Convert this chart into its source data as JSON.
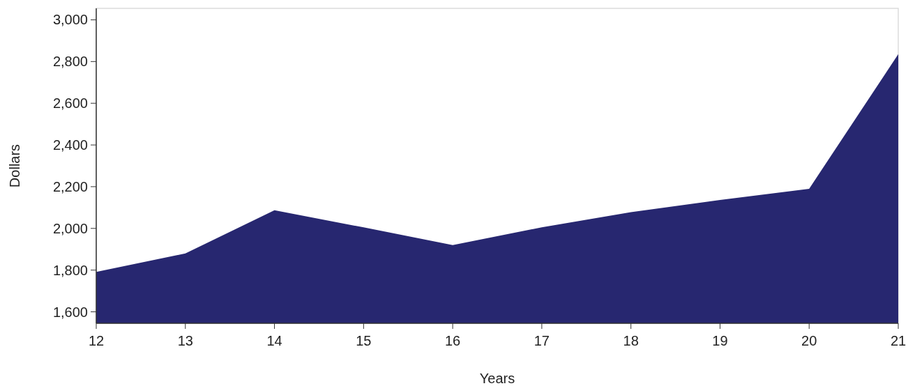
{
  "chart_data": {
    "type": "area",
    "xlabel": "Years",
    "ylabel": "Dollars",
    "x": [
      12,
      13,
      14,
      15,
      16,
      17,
      18,
      19,
      20,
      21
    ],
    "series": [
      {
        "color": "#272770",
        "values": [
          1791,
          1880,
          2087,
          2005,
          1920,
          2005,
          2078,
          2136,
          2190,
          2835
        ]
      }
    ],
    "xlim": [
      12,
      21
    ],
    "xticks": [
      12,
      13,
      14,
      15,
      16,
      17,
      18,
      19,
      20,
      21
    ],
    "ylim": [
      1545,
      3055
    ],
    "yticks": [
      {
        "value": 1600,
        "label": "1,600"
      },
      {
        "value": 1800,
        "label": "1,800"
      },
      {
        "value": 2000,
        "label": "2,000"
      },
      {
        "value": 2200,
        "label": "2,200"
      },
      {
        "value": 2400,
        "label": "2,400"
      },
      {
        "value": 2600,
        "label": "2,600"
      },
      {
        "value": 2800,
        "label": "2,800"
      },
      {
        "value": 3000,
        "label": "3,000"
      }
    ],
    "grid": false
  }
}
